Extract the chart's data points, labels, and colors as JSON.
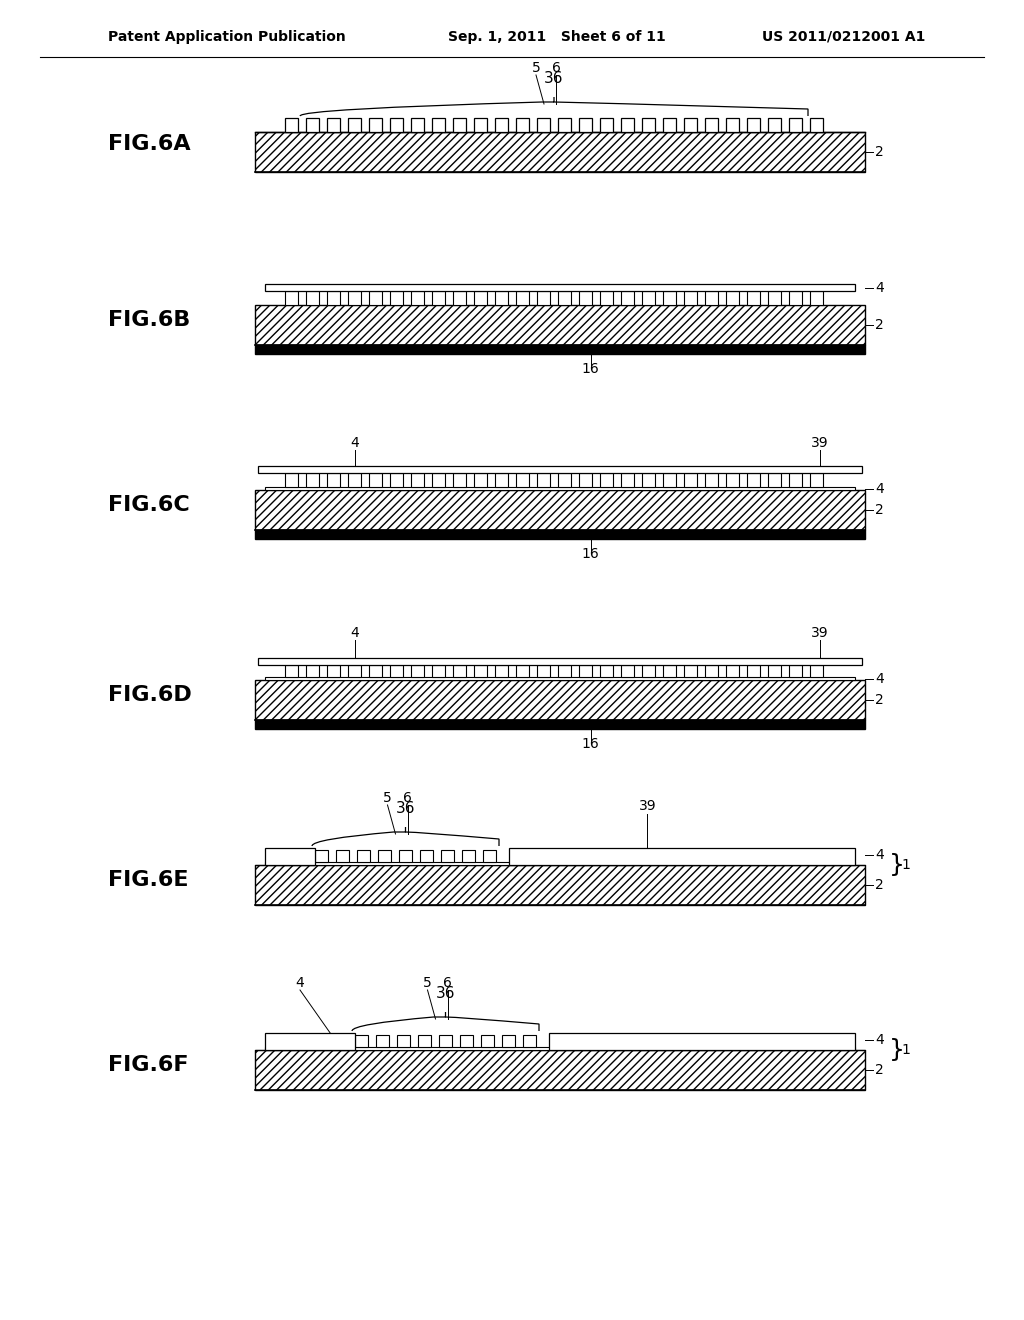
{
  "bg_color": "#ffffff",
  "header_left": "Patent Application Publication",
  "header_mid": "Sep. 1, 2011   Sheet 6 of 11",
  "header_right": "US 2011/0212001 A1"
}
